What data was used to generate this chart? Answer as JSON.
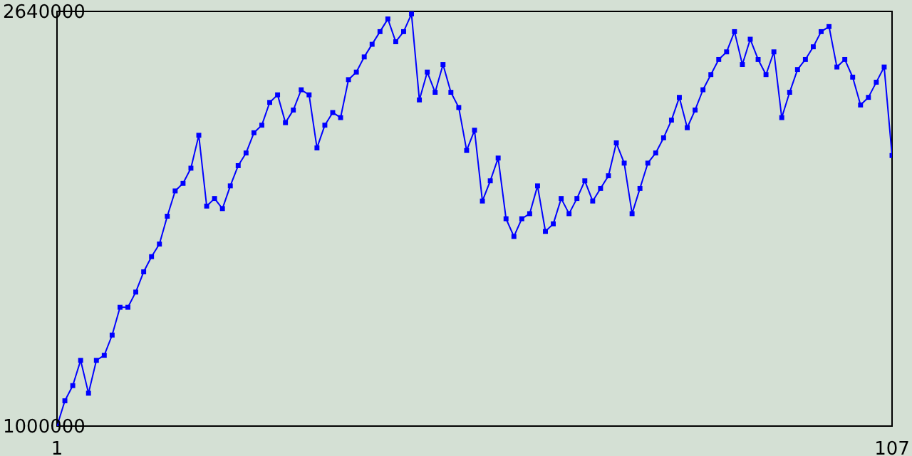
{
  "chart_data": {
    "type": "line",
    "x": [
      1,
      2,
      3,
      4,
      5,
      6,
      7,
      8,
      9,
      10,
      11,
      12,
      13,
      14,
      15,
      16,
      17,
      18,
      19,
      20,
      21,
      22,
      23,
      24,
      25,
      26,
      27,
      28,
      29,
      30,
      31,
      32,
      33,
      34,
      35,
      36,
      37,
      38,
      39,
      40,
      41,
      42,
      43,
      44,
      45,
      46,
      47,
      48,
      49,
      50,
      51,
      52,
      53,
      54,
      55,
      56,
      57,
      58,
      59,
      60,
      61,
      62,
      63,
      64,
      65,
      66,
      67,
      68,
      69,
      70,
      71,
      72,
      73,
      74,
      75,
      76,
      77,
      78,
      79,
      80,
      81,
      82,
      83,
      84,
      85,
      86,
      87,
      88,
      89,
      90,
      91,
      92,
      93,
      94,
      95,
      96,
      97,
      98,
      99,
      100,
      101,
      102,
      103,
      104,
      105,
      106,
      107
    ],
    "series": [
      {
        "color": "#0000ff",
        "values": [
          1000000,
          1100000,
          1160000,
          1260000,
          1130000,
          1260000,
          1280000,
          1360000,
          1470000,
          1470000,
          1530000,
          1610000,
          1670000,
          1720000,
          1830000,
          1930000,
          1960000,
          2020000,
          2150000,
          1870000,
          1900000,
          1860000,
          1950000,
          2030000,
          2080000,
          2160000,
          2190000,
          2280000,
          2310000,
          2200000,
          2250000,
          2330000,
          2310000,
          2100000,
          2190000,
          2240000,
          2220000,
          2370000,
          2400000,
          2460000,
          2510000,
          2560000,
          2610000,
          2520000,
          2560000,
          2630000,
          2290000,
          2400000,
          2320000,
          2430000,
          2320000,
          2260000,
          2090000,
          2170000,
          1890000,
          1970000,
          2060000,
          1820000,
          1750000,
          1820000,
          1840000,
          1950000,
          1770000,
          1800000,
          1900000,
          1840000,
          1900000,
          1970000,
          1890000,
          1940000,
          1990000,
          2120000,
          2040000,
          1840000,
          1940000,
          2040000,
          2080000,
          2140000,
          2210000,
          2300000,
          2180000,
          2250000,
          2330000,
          2390000,
          2450000,
          2480000,
          2560000,
          2430000,
          2530000,
          2450000,
          2390000,
          2480000,
          2220000,
          2320000,
          2410000,
          2450000,
          2500000,
          2560000,
          2580000,
          2420000,
          2450000,
          2380000,
          2270000,
          2300000,
          2360000,
          2420000,
          2070000
        ]
      }
    ],
    "xlim": [
      1,
      107
    ],
    "xticks": [
      1,
      107
    ],
    "ylim": [
      1000000,
      2640000
    ],
    "yticks": [
      1000000,
      2640000
    ],
    "marker": "square",
    "line_style": "solid"
  }
}
